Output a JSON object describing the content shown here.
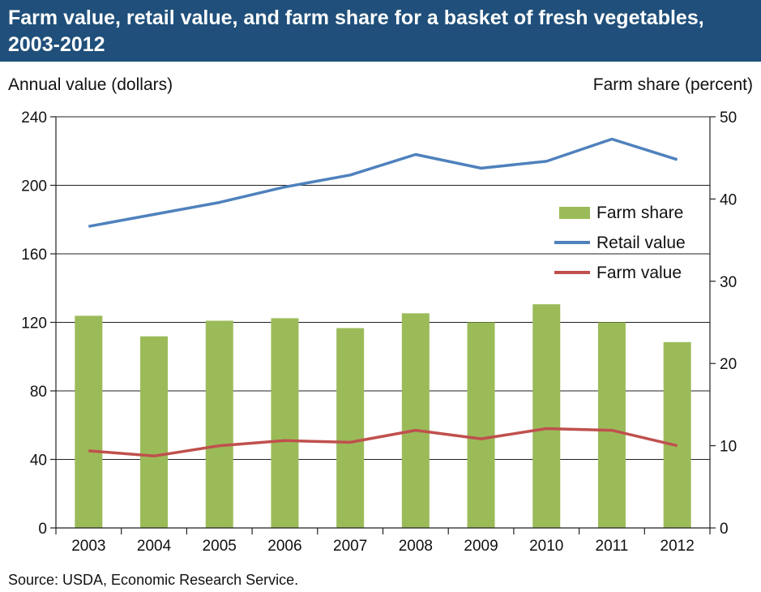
{
  "title": "Farm value, retail value, and farm share for a basket of fresh vegetables, 2003-2012",
  "source": "Source: USDA, Economic  Research Service.",
  "chart_data": {
    "type": "bar",
    "title": "Farm value, retail value, and farm share for a basket of fresh vegetables, 2003-2012",
    "categories": [
      "2003",
      "2004",
      "2005",
      "2006",
      "2007",
      "2008",
      "2009",
      "2010",
      "2011",
      "2012"
    ],
    "ylabel_left": "Annual value (dollars)",
    "ylabel_right": "Farm share (percent)",
    "ylim_left": [
      0,
      240
    ],
    "ylim_right": [
      0,
      50
    ],
    "yticks_left": [
      "0",
      "40",
      "80",
      "120",
      "160",
      "200",
      "240"
    ],
    "yticks_right": [
      "0",
      "10",
      "20",
      "30",
      "40",
      "50"
    ],
    "grid": true,
    "legend_position": "right",
    "series": [
      {
        "name": "Farm share",
        "type": "bar",
        "axis": "right",
        "color": "#9bbb59",
        "values": [
          25.8,
          23.3,
          25.2,
          25.5,
          24.3,
          26.1,
          25.0,
          27.2,
          25.0,
          22.6
        ]
      },
      {
        "name": "Retail value",
        "type": "line",
        "axis": "left",
        "color": "#4f81bd",
        "values": [
          176,
          183,
          190,
          199,
          206,
          218,
          210,
          214,
          227,
          215
        ]
      },
      {
        "name": "Farm value",
        "type": "line",
        "axis": "left",
        "color": "#c0504d",
        "values": [
          45,
          42,
          48,
          51,
          50,
          57,
          52,
          58,
          57,
          48
        ]
      }
    ]
  }
}
